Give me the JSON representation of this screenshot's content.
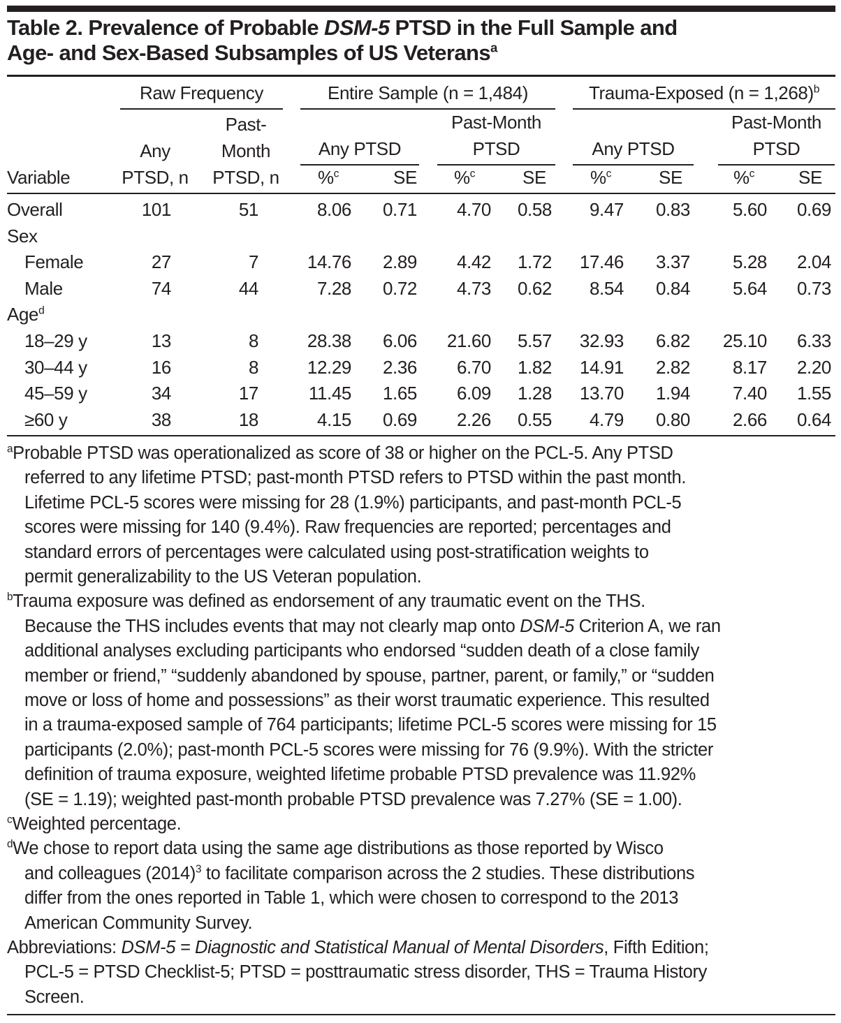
{
  "title": {
    "line1_a": "Table 2. Prevalence of Probable ",
    "line1_italic": "DSM-5",
    "line1_b": " PTSD in the Full Sample and",
    "line2": "Age- and Sex-Based Subsamples of US Veterans",
    "line2_sup": "a"
  },
  "header": {
    "spanners": {
      "raw": "Raw Frequency",
      "entire": "Entire Sample (n = 1,484)",
      "trauma": "Trauma-Exposed (n = 1,268)",
      "trauma_sup": "b"
    },
    "sub": {
      "any_ptsd": "Any PTSD",
      "past_month_1": "Past-Month",
      "past_month_2": "PTSD"
    },
    "cols": {
      "variable": "Variable",
      "any_n_1": "Any",
      "any_n_2": "PTSD, n",
      "pm_n_1": "Past-",
      "pm_n_2": "Month",
      "pm_n_3": "PTSD, n",
      "pct": "%",
      "pct_sup": "c",
      "se": "SE"
    }
  },
  "rows": [
    {
      "label": "Overall",
      "indent": false,
      "values": [
        "101",
        "51",
        "8.06",
        "0.71",
        "4.70",
        "0.58",
        "9.47",
        "0.83",
        "5.60",
        "0.69"
      ]
    },
    {
      "label": "Sex",
      "indent": false,
      "values": []
    },
    {
      "label": "Female",
      "indent": true,
      "values": [
        "27",
        "7",
        "14.76",
        "2.89",
        "4.42",
        "1.72",
        "17.46",
        "3.37",
        "5.28",
        "2.04"
      ]
    },
    {
      "label": "Male",
      "indent": true,
      "values": [
        "74",
        "44",
        "7.28",
        "0.72",
        "4.73",
        "0.62",
        "8.54",
        "0.84",
        "5.64",
        "0.73"
      ]
    },
    {
      "label": "Age",
      "label_sup": "d",
      "indent": false,
      "values": []
    },
    {
      "label": "18–29 y",
      "indent": true,
      "values": [
        "13",
        "8",
        "28.38",
        "6.06",
        "21.60",
        "5.57",
        "32.93",
        "6.82",
        "25.10",
        "6.33"
      ]
    },
    {
      "label": "30–44 y",
      "indent": true,
      "values": [
        "16",
        "8",
        "12.29",
        "2.36",
        "6.70",
        "1.82",
        "14.91",
        "2.82",
        "8.17",
        "2.20"
      ]
    },
    {
      "label": "45–59 y",
      "indent": true,
      "values": [
        "34",
        "17",
        "11.45",
        "1.65",
        "6.09",
        "1.28",
        "13.70",
        "1.94",
        "7.40",
        "1.55"
      ]
    },
    {
      "label": "≥60 y",
      "indent": true,
      "values": [
        "38",
        "18",
        "4.15",
        "0.69",
        "2.26",
        "0.55",
        "4.79",
        "0.80",
        "2.66",
        "0.64"
      ]
    }
  ],
  "footnotes": [
    {
      "marker": "a",
      "lines": [
        [
          {
            "t": "Probable PTSD was operationalized as score of 38 or higher on the PCL-5. Any PTSD"
          }
        ],
        [
          {
            "t": "referred to any lifetime PTSD; past-month PTSD refers to PTSD within the past month."
          }
        ],
        [
          {
            "t": "Lifetime PCL-5 scores were missing for 28 (1.9%) participants, and past-month PCL-5"
          }
        ],
        [
          {
            "t": "scores were missing for 140 (9.4%). Raw frequencies are reported; percentages and"
          }
        ],
        [
          {
            "t": "standard errors of percentages were calculated using post-stratification weights to"
          }
        ],
        [
          {
            "t": "permit generalizability to the US Veteran population."
          }
        ]
      ]
    },
    {
      "marker": "b",
      "lines": [
        [
          {
            "t": "Trauma exposure was defined as endorsement of any traumatic event on the THS."
          }
        ],
        [
          {
            "t": "Because the THS includes events that may not clearly map onto "
          },
          {
            "t": "DSM-5",
            "i": true
          },
          {
            "t": " Criterion A, we ran"
          }
        ],
        [
          {
            "t": "additional analyses excluding participants who endorsed “sudden death of a close family"
          }
        ],
        [
          {
            "t": "member or friend,” “suddenly abandoned by spouse, partner, parent, or family,” or “sudden"
          }
        ],
        [
          {
            "t": "move or loss of home and possessions” as their worst traumatic experience. This resulted"
          }
        ],
        [
          {
            "t": "in a trauma-exposed sample of 764 participants; lifetime PCL-5 scores were missing for 15"
          }
        ],
        [
          {
            "t": "participants (2.0%); past-month PCL-5 scores were missing for 76 (9.9%). With the stricter"
          }
        ],
        [
          {
            "t": "definition of trauma exposure, weighted lifetime probable PTSD prevalence was 11.92%"
          }
        ],
        [
          {
            "t": "(SE = 1.19); weighted past-month probable PTSD prevalence was 7.27% (SE = 1.00)."
          }
        ]
      ]
    },
    {
      "marker": "c",
      "lines": [
        [
          {
            "t": "Weighted percentage."
          }
        ]
      ]
    },
    {
      "marker": "d",
      "lines": [
        [
          {
            "t": "We chose to report data using the same age distributions as those reported by Wisco"
          }
        ],
        [
          {
            "t": "and colleagues (2014)"
          },
          {
            "t": "3",
            "sup": true
          },
          {
            "t": " to facilitate comparison across the 2 studies. These distributions"
          }
        ],
        [
          {
            "t": "differ from the ones reported in Table 1, which were chosen to correspond to the 2013"
          }
        ],
        [
          {
            "t": "American Community Survey."
          }
        ]
      ]
    },
    {
      "marker": "",
      "lines": [
        [
          {
            "t": "Abbreviations: "
          },
          {
            "t": "DSM-5 = Diagnostic and Statistical Manual of Mental Disorders",
            "i": true
          },
          {
            "t": ", Fifth Edition;"
          }
        ],
        [
          {
            "t": "PCL-5 = PTSD Checklist-5; PTSD = posttraumatic stress disorder, THS = Trauma History"
          }
        ],
        [
          {
            "t": "Screen."
          }
        ]
      ]
    }
  ]
}
